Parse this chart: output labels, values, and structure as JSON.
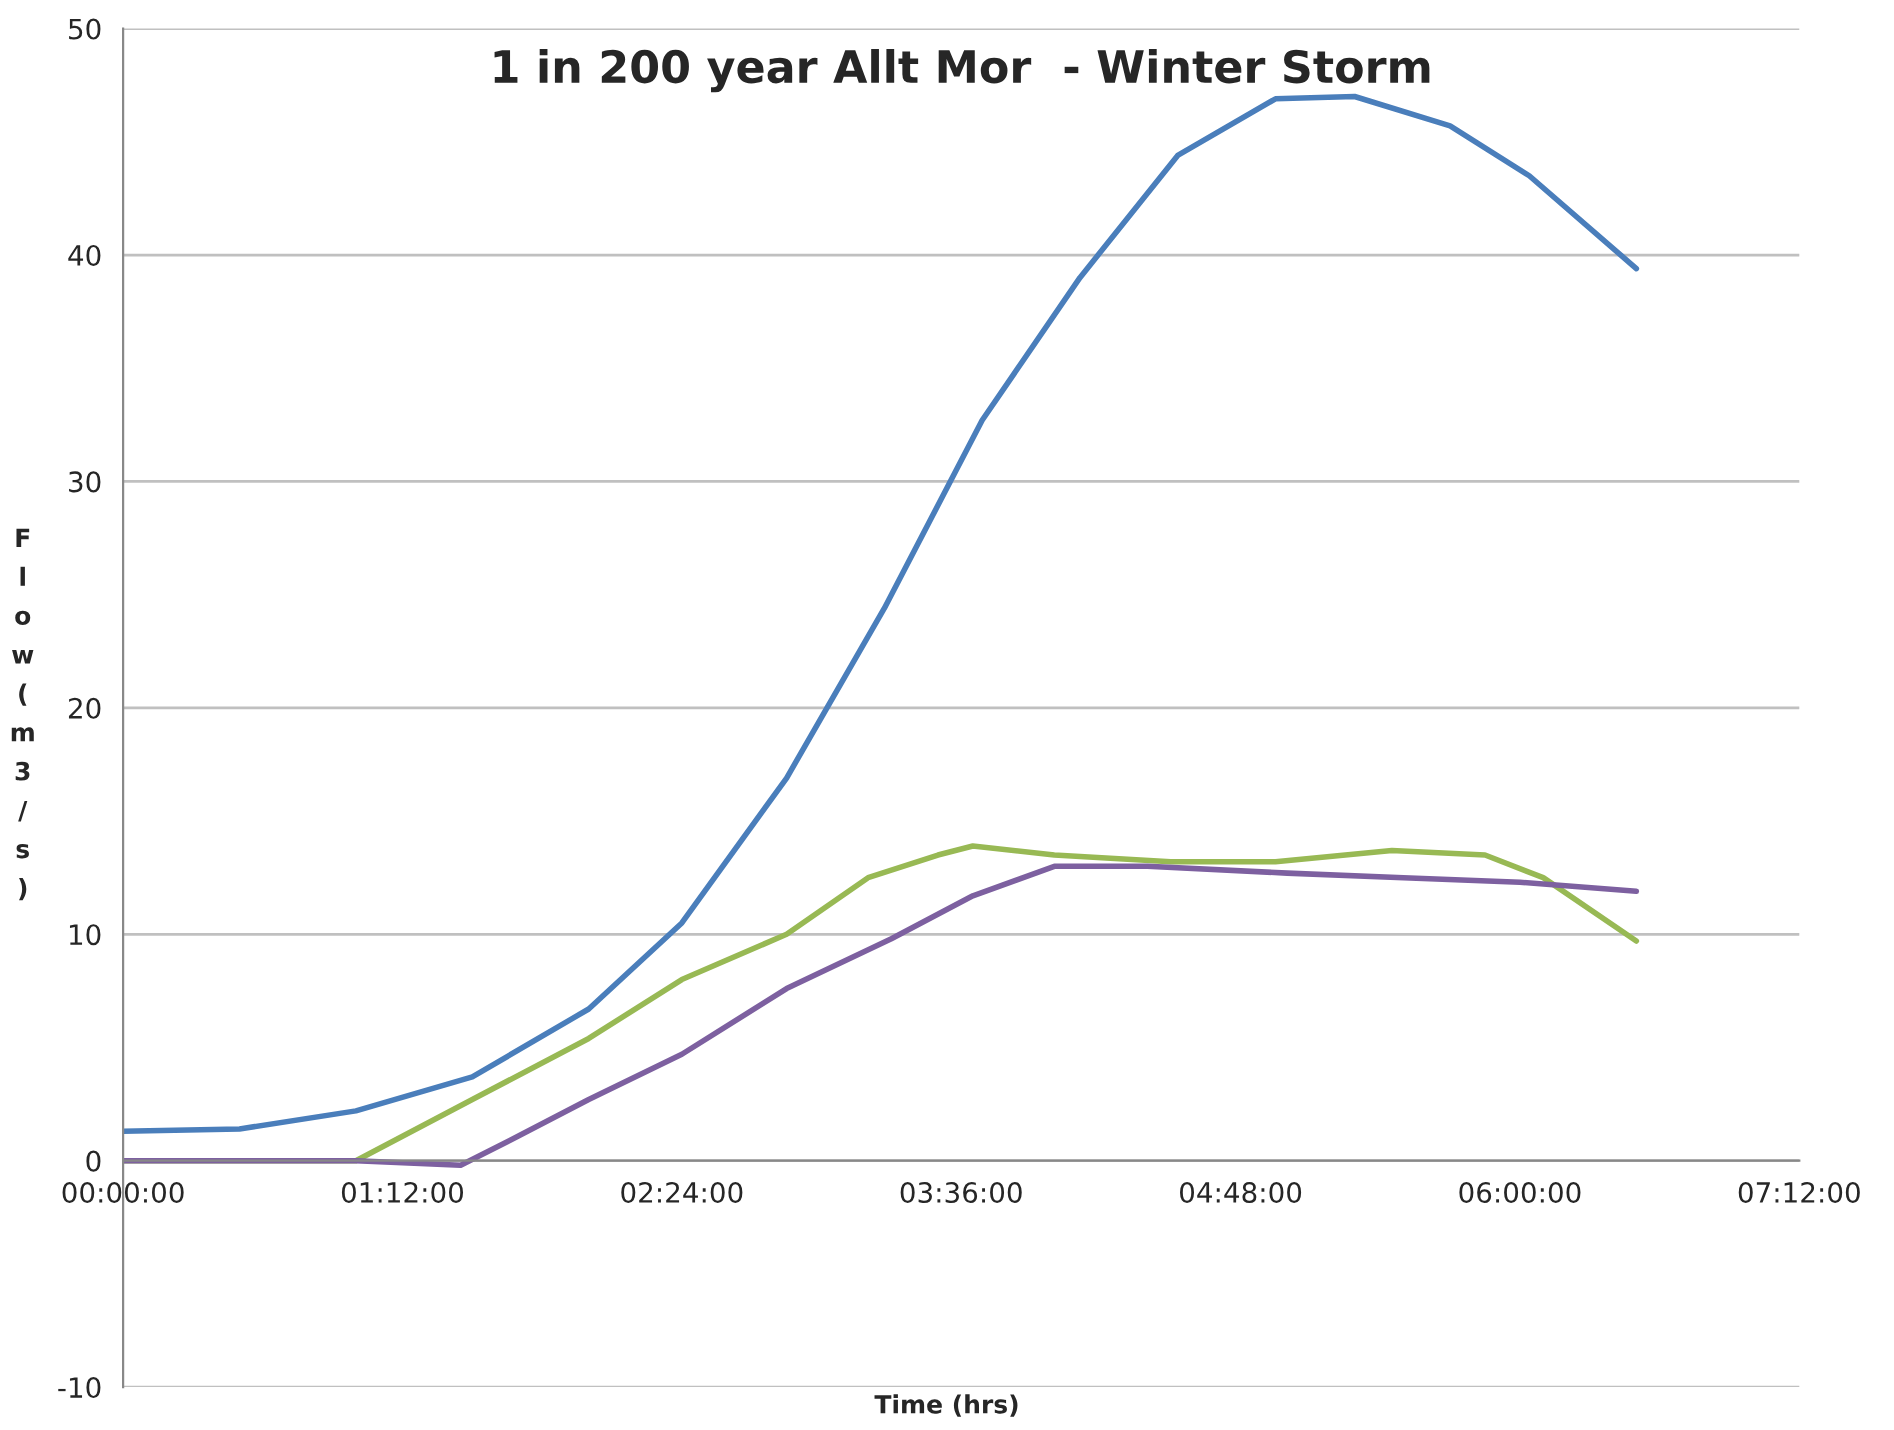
{
  "chart_data": {
    "type": "line",
    "title": "1 in 200 year Allt Mor  - Winter Storm",
    "xlabel": "Time (hrs)",
    "ylabel": "Flow (m3/s)",
    "series": [
      {
        "color": "#4a7ebb",
        "x": [
          0,
          0.5,
          1.0,
          1.5,
          2.0,
          2.4,
          2.85,
          3.27,
          3.69,
          4.11,
          4.53,
          4.95,
          5.29,
          5.7,
          6.04,
          6.5
        ],
        "values": [
          1.3,
          1.4,
          2.2,
          3.7,
          6.7,
          10.5,
          16.9,
          24.4,
          32.7,
          39.0,
          44.4,
          46.9,
          47.0,
          45.7,
          43.5,
          39.4
        ]
      },
      {
        "color": "#98b954",
        "x": [
          0,
          1.0,
          1.5,
          2.0,
          2.4,
          2.85,
          3.2,
          3.5,
          3.65,
          4.0,
          4.5,
          4.95,
          5.45,
          5.85,
          6.1,
          6.5
        ],
        "values": [
          0,
          0,
          2.7,
          5.4,
          8.0,
          10.0,
          12.5,
          13.5,
          13.9,
          13.5,
          13.2,
          13.2,
          13.7,
          13.5,
          12.5,
          9.7
        ]
      },
      {
        "color": "#7d60a0",
        "x": [
          0,
          1.0,
          1.45,
          1.7,
          2.0,
          2.4,
          2.85,
          3.3,
          3.65,
          4.0,
          4.4,
          5.0,
          5.5,
          6.0,
          6.5
        ],
        "values": [
          0,
          0,
          -0.2,
          1.1,
          2.7,
          4.7,
          7.6,
          9.8,
          11.7,
          13.0,
          13.0,
          12.7,
          12.5,
          12.3,
          11.9
        ]
      }
    ],
    "xlim": [
      0,
      7.2
    ],
    "xticks": [
      {
        "value": 0,
        "label": "00:00:00"
      },
      {
        "value": 1.2,
        "label": "01:12:00"
      },
      {
        "value": 2.4,
        "label": "02:24:00"
      },
      {
        "value": 3.6,
        "label": "03:36:00"
      },
      {
        "value": 4.8,
        "label": "04:48:00"
      },
      {
        "value": 6.0,
        "label": "06:00:00"
      },
      {
        "value": 7.2,
        "label": "07:12:00"
      }
    ],
    "ylim": [
      -10,
      50
    ],
    "yticks": [
      -10,
      0,
      10,
      20,
      30,
      40,
      50
    ],
    "grid": "y"
  }
}
